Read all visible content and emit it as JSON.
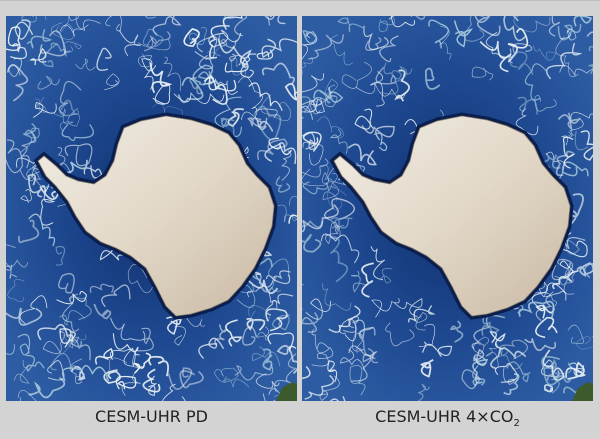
{
  "panels": [
    {
      "label": "CESM-UHR PD"
    },
    {
      "label_main": "CESM-UHR 4×CO",
      "label_sub": "2"
    }
  ],
  "colors": {
    "background": "#d3d3d3",
    "ocean": "#1d3f8a",
    "eddies": "#e8f0f4",
    "ice": "#e4ddd0"
  }
}
